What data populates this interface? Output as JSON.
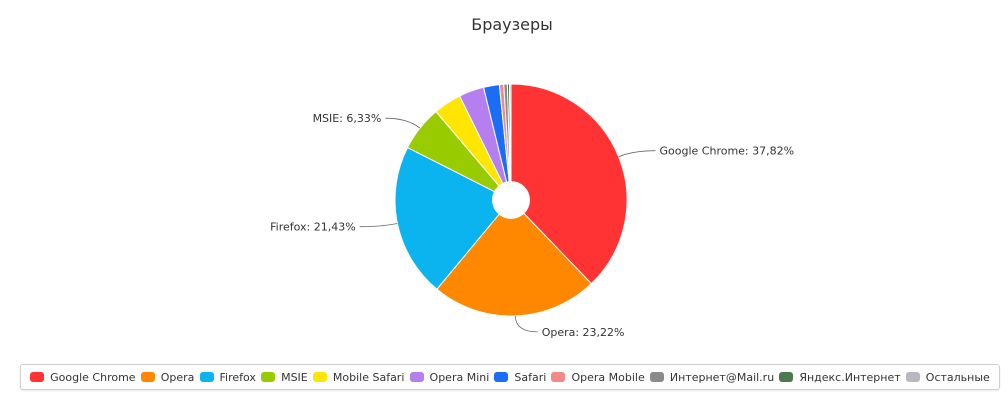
{
  "chart_data": {
    "type": "pie",
    "title": "Браузеры",
    "series": [
      {
        "name": "Google Chrome",
        "value": 37.82,
        "label": "Google Chrome: 37,82%",
        "color": "#ff3333"
      },
      {
        "name": "Opera",
        "value": 23.22,
        "label": "Opera: 23,22%",
        "color": "#ff8800"
      },
      {
        "name": "Firefox",
        "value": 21.43,
        "label": "Firefox: 21,43%",
        "color": "#0bb4ef"
      },
      {
        "name": "MSIE",
        "value": 6.33,
        "label": "MSIE: 6,33%",
        "color": "#99cc00"
      },
      {
        "name": "Mobile Safari",
        "value": 3.9,
        "label": "",
        "color": "#ffe600"
      },
      {
        "name": "Opera Mini",
        "value": 3.5,
        "label": "",
        "color": "#b57ff0"
      },
      {
        "name": "Safari",
        "value": 2.2,
        "label": "",
        "color": "#1a6ef5"
      },
      {
        "name": "Opera Mobile",
        "value": 0.6,
        "label": "",
        "color": "#f28a8a"
      },
      {
        "name": "Интернет@Mail.ru",
        "value": 0.5,
        "label": "",
        "color": "#8a8a8a"
      },
      {
        "name": "Яндекс.Интернет",
        "value": 0.3,
        "label": "",
        "color": "#4c7a4c"
      },
      {
        "name": "Остальные",
        "value": 0.2,
        "label": "",
        "color": "#b8b8c0"
      }
    ],
    "legend_position": "bottom"
  }
}
